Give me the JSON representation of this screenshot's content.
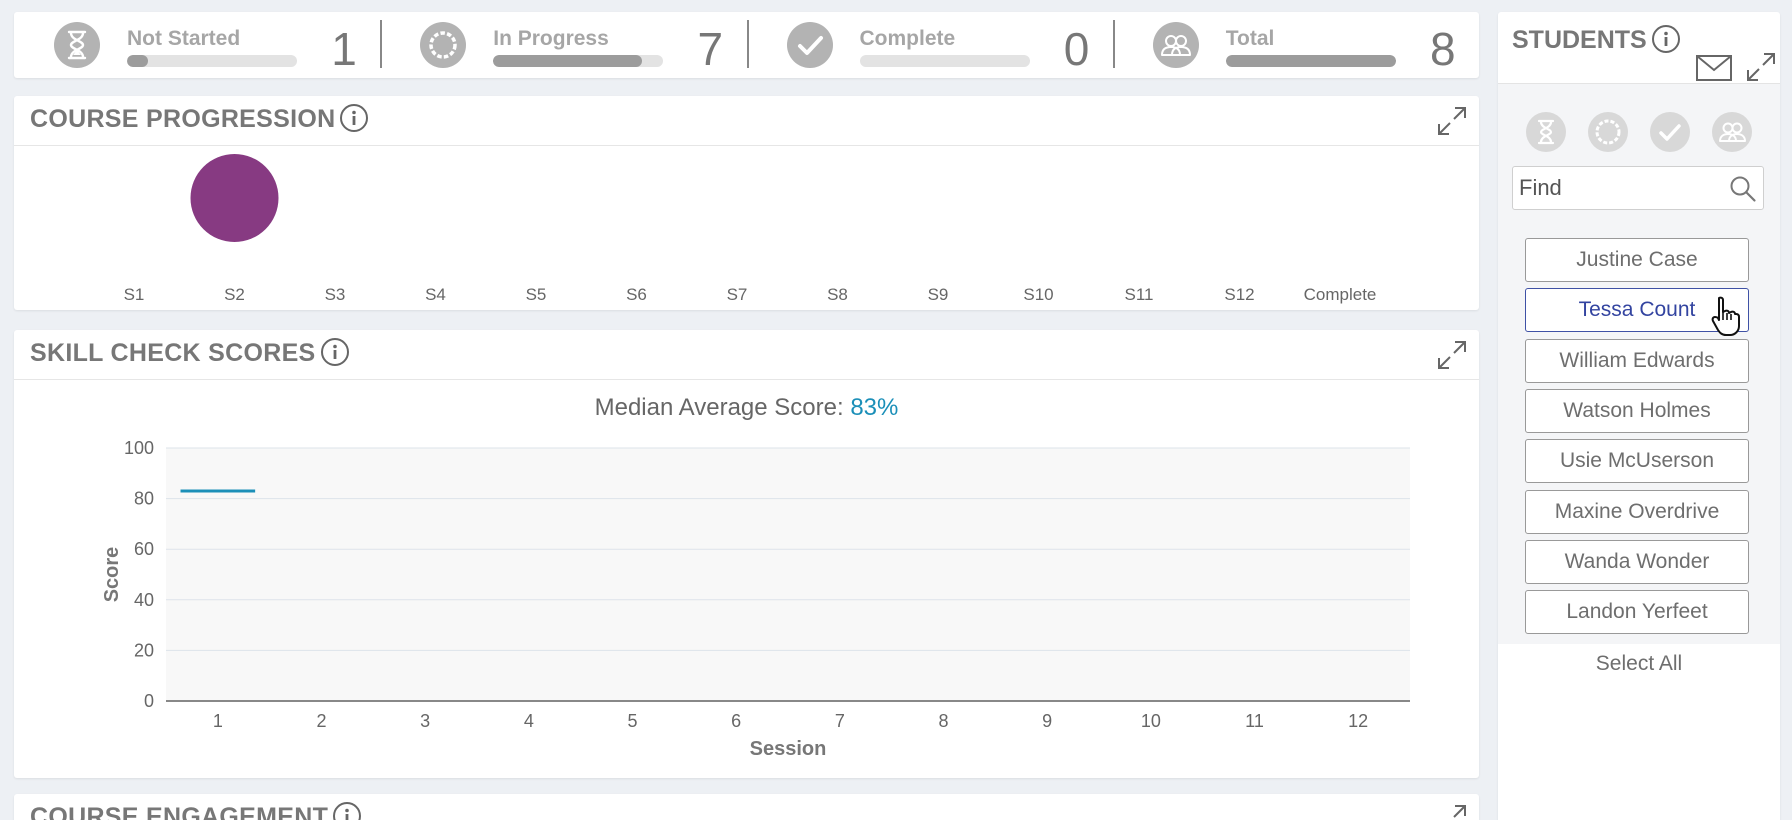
{
  "stats": [
    {
      "label": "Not Started",
      "count": "1",
      "fill": 0.125,
      "icon": "hourglass-icon"
    },
    {
      "label": "In Progress",
      "count": "7",
      "fill": 0.875,
      "icon": "progress-ring-icon"
    },
    {
      "label": "Complete",
      "count": "0",
      "fill": 0,
      "icon": "check-icon"
    },
    {
      "label": "Total",
      "count": "8",
      "fill": 1,
      "icon": "group-icon"
    }
  ],
  "progression": {
    "title": "COURSE PROGRESSION",
    "bubble_color": "#873a82",
    "chart_data": {
      "type": "scatter",
      "categories": [
        "S1",
        "S2",
        "S3",
        "S4",
        "S5",
        "S6",
        "S7",
        "S8",
        "S9",
        "S10",
        "S11",
        "S12",
        "Complete"
      ],
      "values": [
        0,
        7,
        0,
        0,
        0,
        0,
        0,
        0,
        0,
        0,
        0,
        0,
        0
      ],
      "grid": false
    }
  },
  "skill": {
    "title": "SKILL CHECK SCORES",
    "median_label": "Median Average Score:",
    "median_value": "83%",
    "line_color": "#1b8fb8",
    "chart_data": {
      "type": "line",
      "x": [
        1,
        2,
        3,
        4,
        5,
        6,
        7,
        8,
        9,
        10,
        11,
        12
      ],
      "series": [
        {
          "values": [
            83,
            null,
            null,
            null,
            null,
            null,
            null,
            null,
            null,
            null,
            null,
            null
          ]
        }
      ],
      "xlabel": "Session",
      "ylabel": "Score",
      "ylim": [
        0,
        100
      ],
      "yticks": [
        0,
        20,
        40,
        60,
        80,
        100
      ],
      "grid": true
    }
  },
  "engagement": {
    "title": "COURSE ENGAGEMENT"
  },
  "students": {
    "title": "STUDENTS",
    "search_placeholder": "Find",
    "list": [
      {
        "name": "Justine Case",
        "selected": false
      },
      {
        "name": "Tessa Count",
        "selected": true
      },
      {
        "name": "William Edwards",
        "selected": false
      },
      {
        "name": "Watson Holmes",
        "selected": false
      },
      {
        "name": "Usie McUserson",
        "selected": false
      },
      {
        "name": "Maxine Overdrive",
        "selected": false
      },
      {
        "name": "Wanda Wonder",
        "selected": false
      },
      {
        "name": "Landon Yerfeet",
        "selected": false
      }
    ],
    "select_all": "Select All"
  }
}
